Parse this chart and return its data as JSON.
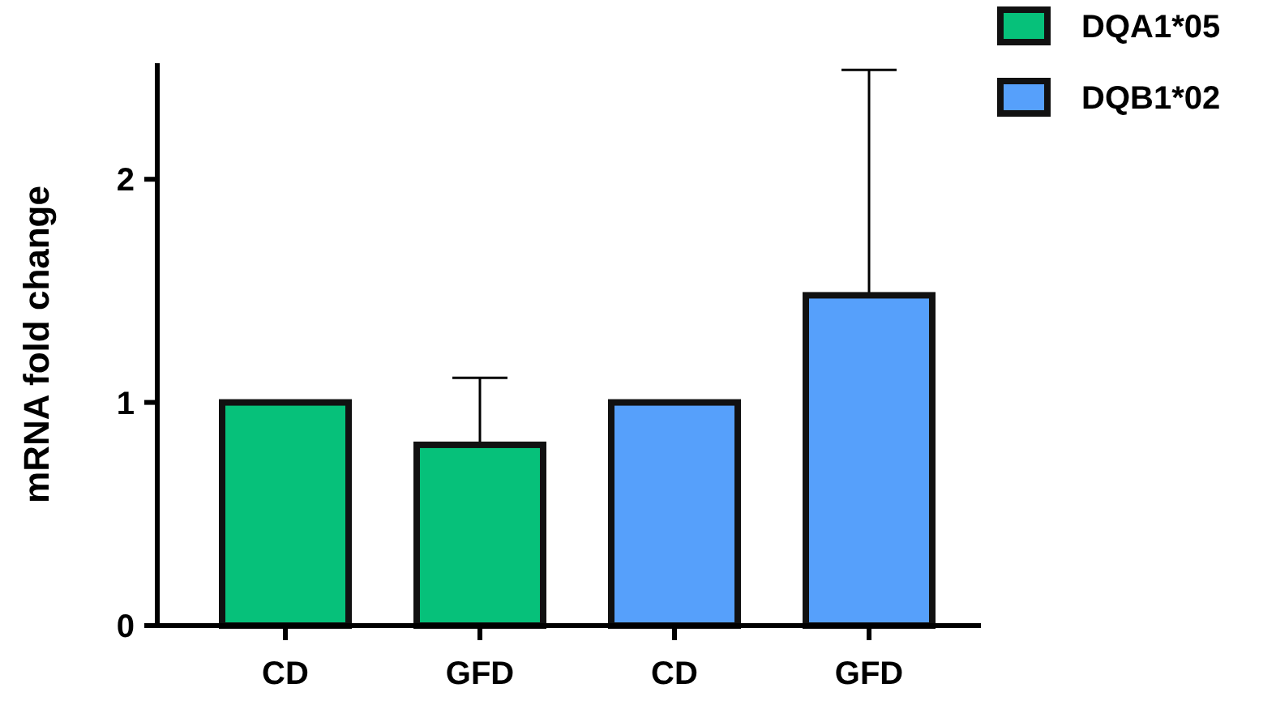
{
  "chart_data": {
    "type": "bar",
    "ylabel": "mRNA fold change",
    "categories": [
      "CD",
      "GFD",
      "CD",
      "GFD"
    ],
    "series": [
      {
        "name": "DQA1*05",
        "color": "#06c17a",
        "values": [
          1,
          0.81,
          null,
          null
        ],
        "errors": [
          null,
          [
            0.81,
            1.11
          ],
          null,
          null
        ]
      },
      {
        "name": "DQB1*02",
        "color": "#56a0fb",
        "values": [
          null,
          null,
          1,
          1.48
        ],
        "errors": [
          null,
          null,
          null,
          [
            1.48,
            2.49
          ]
        ]
      }
    ],
    "ylim": [
      0,
      2.52
    ],
    "yticks": [
      0,
      1,
      2
    ],
    "grid": false,
    "legend": "top right"
  }
}
